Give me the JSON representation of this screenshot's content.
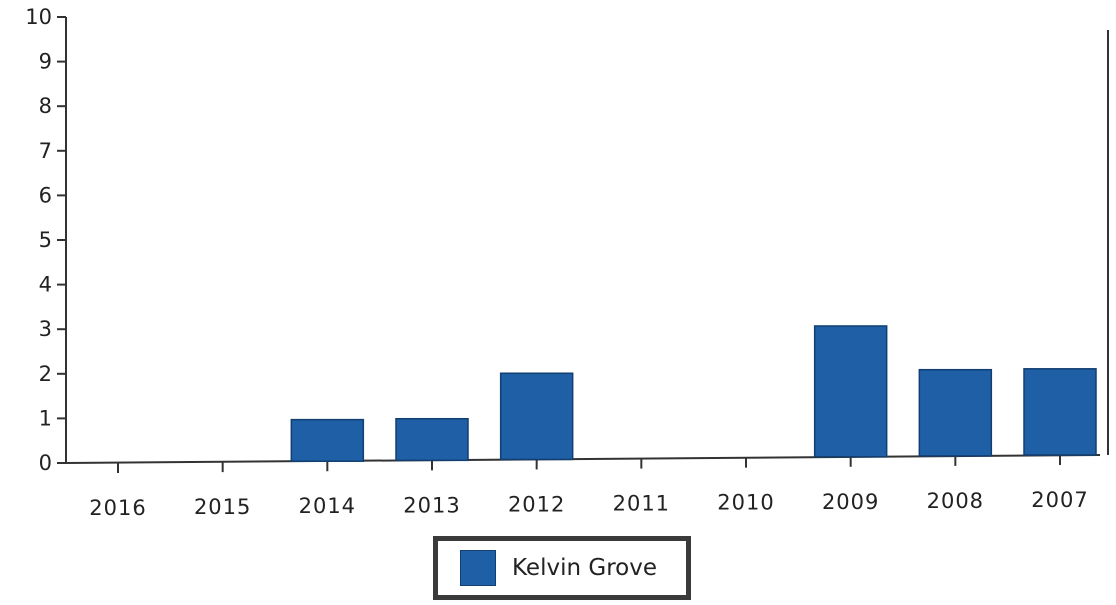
{
  "chart_data": {
    "type": "bar",
    "categories": [
      "2016",
      "2015",
      "2014",
      "2013",
      "2012",
      "2011",
      "2010",
      "2009",
      "2008",
      "2007"
    ],
    "series": [
      {
        "name": "Kelvin Grove",
        "values": [
          0,
          0,
          1,
          1,
          2,
          0,
          0,
          3,
          2,
          2
        ]
      }
    ],
    "yticks": [
      "0",
      "1",
      "2",
      "3",
      "4",
      "5",
      "6",
      "7",
      "8",
      "9",
      "10"
    ],
    "ylim": [
      0,
      10
    ],
    "grid": false,
    "legend_position": "bottom-center",
    "colors": {
      "bar": "#1f5fa6",
      "bar_edge": "#123f72",
      "axis": "#333333"
    }
  }
}
